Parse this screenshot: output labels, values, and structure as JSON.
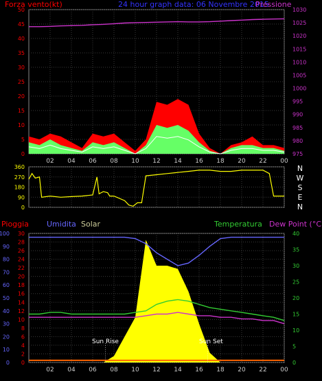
{
  "header": {
    "left_label": "Forza vento",
    "left_label_unit": "(kt)",
    "title": "24 hour graph data:  06 Novembre 2015",
    "right_label": "Pressione"
  },
  "colors": {
    "axis_red": "#ff0000",
    "axis_magenta": "#cc33cc",
    "axis_green": "#33cc33",
    "axis_blue": "#6666ff",
    "axis_yellow": "#ffff00",
    "grid": "#3a3a3a",
    "solar": "#ffff00",
    "rain": "#ff6600",
    "title_blue": "#3333ff",
    "gust_red": "#ff0000",
    "avg_green": "#66ff66",
    "min_white": "#ffffff"
  },
  "x_ticks": [
    "02",
    "04",
    "06",
    "08",
    "10",
    "12",
    "14",
    "16",
    "18",
    "20",
    "22",
    "00"
  ],
  "compass": [
    "N",
    "W",
    "S",
    "E",
    "N"
  ],
  "panel3_labels": {
    "rain": "Pioggia",
    "humidity": "Umidita",
    "solar": "Solar",
    "temperature": "Temperatura",
    "dewpoint": "Dew Point (°C)",
    "sun_rise": "Sun Rise",
    "sun_set": "Sun Set"
  },
  "chart_data": [
    {
      "type": "line",
      "title": "Wind speed and pressure",
      "ylabel": "Forza vento",
      "y2label": "Pressione",
      "ylim": [
        0,
        50
      ],
      "yticks": [
        0,
        5,
        10,
        15,
        20,
        25,
        30,
        35,
        40,
        45,
        50
      ],
      "y2lim": [
        975,
        1030
      ],
      "y2ticks": [
        975,
        980,
        985,
        990,
        995,
        1000,
        1005,
        1010,
        1015,
        1020,
        1025,
        1030
      ],
      "x_hours": [
        0,
        1,
        2,
        3,
        4,
        5,
        6,
        7,
        8,
        9,
        10,
        11,
        12,
        13,
        14,
        15,
        16,
        17,
        18,
        19,
        20,
        21,
        22,
        23,
        24
      ],
      "series": [
        {
          "key": "gust",
          "values": [
            6,
            5,
            7,
            6,
            4,
            2,
            7,
            6,
            7,
            4,
            1,
            5,
            18,
            17,
            19,
            17,
            7,
            2,
            0,
            3,
            4,
            6,
            3,
            3,
            2
          ]
        },
        {
          "key": "avg",
          "values": [
            4,
            3,
            5,
            3,
            2,
            1,
            4,
            3,
            4,
            2,
            0,
            3,
            10,
            9,
            10,
            8,
            4,
            1,
            0,
            2,
            3,
            3,
            2,
            2,
            1
          ]
        },
        {
          "key": "pressure",
          "values": [
            1023.5,
            1023.5,
            1023.6,
            1023.8,
            1023.9,
            1024.0,
            1024.2,
            1024.4,
            1024.6,
            1024.9,
            1025.0,
            1025.1,
            1025.2,
            1025.3,
            1025.4,
            1025.3,
            1025.3,
            1025.4,
            1025.6,
            1025.8,
            1026.0,
            1026.2,
            1026.3,
            1026.4,
            1026.5
          ]
        }
      ]
    },
    {
      "type": "line",
      "title": "Wind direction",
      "ylim": [
        0,
        360
      ],
      "yticks": [
        0,
        90,
        180,
        270,
        360
      ],
      "x_hours": [
        0,
        0.3,
        0.6,
        1,
        1.2,
        2,
        3,
        4,
        5,
        6,
        6.4,
        6.6,
        7,
        7.4,
        7.6,
        8,
        9,
        9.4,
        9.8,
        10.2,
        10.6,
        11,
        12,
        13,
        14,
        15,
        16,
        17,
        18,
        19,
        20,
        21,
        22,
        22.6,
        23,
        24
      ],
      "values": [
        250,
        300,
        260,
        270,
        90,
        100,
        90,
        95,
        100,
        110,
        270,
        120,
        140,
        130,
        100,
        100,
        60,
        20,
        10,
        40,
        40,
        280,
        290,
        300,
        310,
        320,
        330,
        330,
        320,
        320,
        330,
        330,
        330,
        300,
        100,
        100
      ]
    },
    {
      "type": "area",
      "title": "Rain, humidity, solar, temperature, dew point",
      "ylabel": "Umidita",
      "ylim": [
        0,
        100
      ],
      "yticks": [
        0,
        10,
        20,
        30,
        40,
        50,
        60,
        70,
        80,
        90,
        100
      ],
      "rain_yticks": [
        0,
        2,
        4,
        6,
        8,
        10,
        12,
        14,
        16,
        18,
        20,
        22,
        24,
        26,
        28,
        30
      ],
      "y2label": "Temperatura",
      "y2lim": [
        0,
        40
      ],
      "y2ticks": [
        0,
        5,
        10,
        15,
        20,
        25,
        30,
        35,
        40
      ],
      "x_hours": [
        0,
        1,
        2,
        3,
        4,
        5,
        6,
        7,
        8,
        9,
        10,
        11,
        12,
        13,
        14,
        15,
        16,
        17,
        18,
        19,
        20,
        21,
        22,
        23,
        24
      ],
      "series": [
        {
          "key": "humidity",
          "values": [
            97,
            97,
            97,
            97,
            97,
            97,
            97,
            97,
            97,
            97,
            96,
            92,
            85,
            80,
            75,
            77,
            83,
            90,
            96,
            97,
            97,
            97,
            97,
            97,
            97
          ]
        },
        {
          "key": "temperature",
          "values": [
            15,
            15,
            15.5,
            15.5,
            15,
            15,
            15,
            15,
            15,
            15,
            15.5,
            16,
            18,
            19,
            19.5,
            19,
            18,
            17,
            16.5,
            16,
            15.5,
            15,
            14.5,
            14,
            13
          ]
        },
        {
          "key": "dewpoint",
          "values": [
            14,
            14,
            14,
            14,
            14,
            14,
            14,
            14,
            14,
            14,
            14,
            14.5,
            15,
            15,
            15.5,
            15,
            14.5,
            14.5,
            14,
            14,
            13.5,
            13.5,
            13,
            13,
            12
          ]
        },
        {
          "key": "solar",
          "values": [
            0,
            0,
            0,
            0,
            0,
            0,
            0,
            0,
            2,
            8,
            14,
            38,
            30,
            30,
            29,
            22,
            12,
            3,
            0,
            0,
            0,
            0,
            0,
            0,
            0
          ]
        },
        {
          "key": "rain",
          "values": [
            0.5,
            0.5,
            0.5,
            0.5,
            0.5,
            0.5,
            0.5,
            0.5,
            0.5,
            0.5,
            0.5,
            0.5,
            0.5,
            0.5,
            0.5,
            0.5,
            0.5,
            0.5,
            0.5,
            0.5,
            0.5,
            0.5,
            0.5,
            0.5,
            0.5
          ]
        }
      ],
      "sun_rise_hour": 7.2,
      "sun_set_hour": 16.8
    }
  ]
}
